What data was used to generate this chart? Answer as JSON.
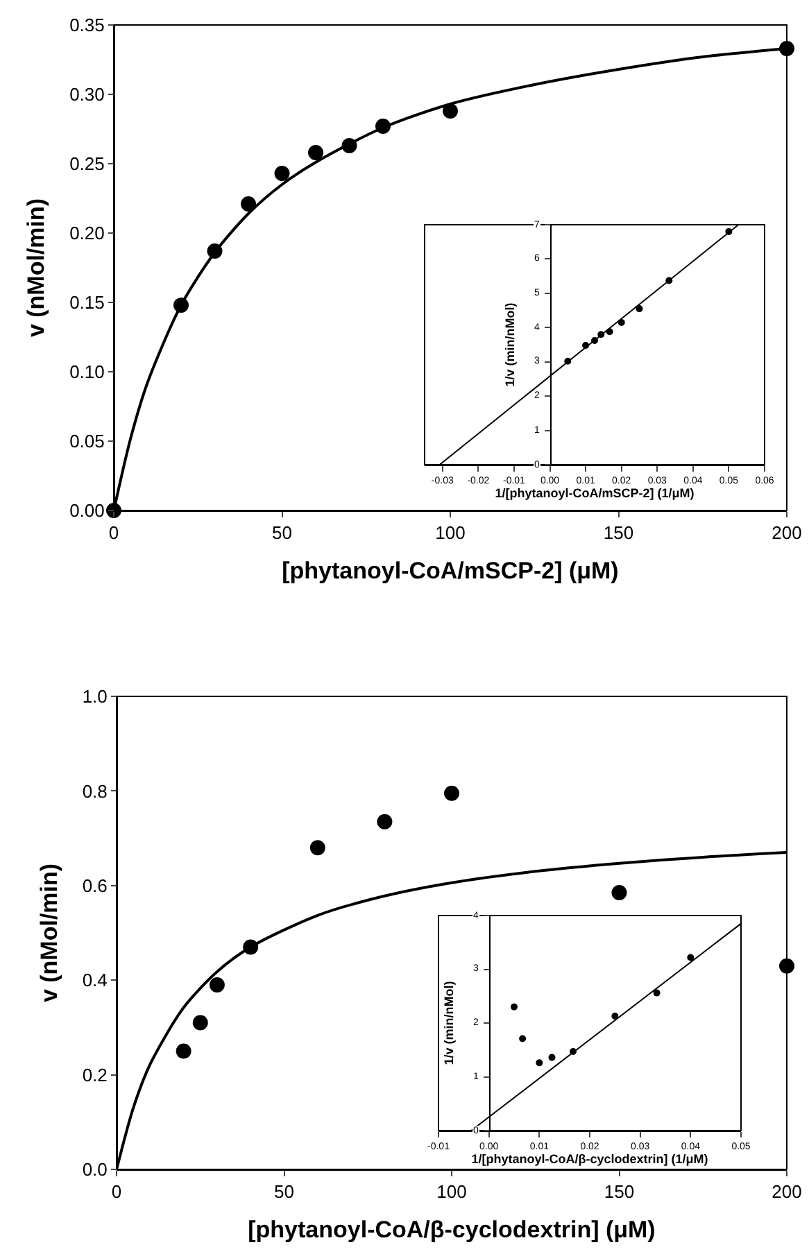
{
  "chart_data": [
    {
      "type": "scatter",
      "xlabel": "[phytanoyl-CoA/mSCP-2] (μM)",
      "ylabel": "v (nMol/min)",
      "xlim": [
        0,
        200
      ],
      "xticks": [
        0,
        50,
        100,
        150,
        200
      ],
      "ylim": [
        0,
        0.35
      ],
      "yticks": [
        {
          "value": 0,
          "label": "0.00"
        },
        {
          "value": 0.05,
          "label": "0.05"
        },
        {
          "value": 0.1,
          "label": "0.10"
        },
        {
          "value": 0.15,
          "label": "0.15"
        },
        {
          "value": 0.2,
          "label": "0.20"
        },
        {
          "value": 0.25,
          "label": "0.25"
        },
        {
          "value": 0.3,
          "label": "0.30"
        },
        {
          "value": 0.35,
          "label": "0.35"
        }
      ],
      "series": [
        {
          "type": "scatter",
          "marker": "circle",
          "color": "#000000",
          "x": [
            0,
            20,
            30,
            40,
            50,
            60,
            70,
            80,
            100,
            200
          ],
          "values": [
            0,
            0.148,
            0.187,
            0.221,
            0.243,
            0.258,
            0.263,
            0.277,
            0.288,
            0.333
          ]
        },
        {
          "type": "line",
          "marker": "none",
          "line_style": "solid",
          "color": "#000000",
          "x": [
            0,
            5,
            10,
            20,
            30,
            40,
            50,
            60,
            80,
            100,
            125,
            150,
            175,
            200
          ],
          "values": [
            0,
            0.052,
            0.092,
            0.148,
            0.186,
            0.214,
            0.235,
            0.251,
            0.276,
            0.293,
            0.307,
            0.318,
            0.327,
            0.333
          ]
        }
      ]
    },
    {
      "type": "scatter",
      "xlabel": "1/[phytanoyl-CoA/mSCP-2] (1/μM)",
      "ylabel": "1/v (min/nMol)",
      "xlim": [
        -0.035,
        0.06
      ],
      "xticks": [
        {
          "value": -0.03,
          "label": "-0.03"
        },
        {
          "value": -0.02,
          "label": "-0.02"
        },
        {
          "value": -0.01,
          "label": "-0.01"
        },
        {
          "value": 0,
          "label": "0.00"
        },
        {
          "value": 0.01,
          "label": "0.01"
        },
        {
          "value": 0.02,
          "label": "0.02"
        },
        {
          "value": 0.03,
          "label": "0.03"
        },
        {
          "value": 0.04,
          "label": "0.04"
        },
        {
          "value": 0.05,
          "label": "0.05"
        },
        {
          "value": 0.06,
          "label": "0.06"
        }
      ],
      "ylim": [
        0,
        7
      ],
      "yticks": [
        0,
        1,
        2,
        3,
        4,
        5,
        6,
        7
      ],
      "series": [
        {
          "type": "scatter",
          "marker": "circle",
          "color": "#000000",
          "x": [
            0.005,
            0.01,
            0.0125,
            0.0143,
            0.0167,
            0.02,
            0.025,
            0.0333,
            0.05
          ],
          "values": [
            3.02,
            3.48,
            3.62,
            3.8,
            3.88,
            4.15,
            4.55,
            5.37,
            6.8
          ]
        },
        {
          "type": "line",
          "marker": "none",
          "line_style": "solid",
          "color": "#000000",
          "x": [
            -0.0308,
            0.0527
          ],
          "values": [
            0,
            7
          ]
        }
      ]
    },
    {
      "type": "scatter",
      "xlabel": "[phytanoyl-CoA/β-cyclodextrin] (μM)",
      "ylabel": "v (nMol/min)",
      "xlim": [
        0,
        200
      ],
      "xticks": [
        0,
        50,
        100,
        150,
        200
      ],
      "ylim": [
        0,
        1.0
      ],
      "yticks": [
        {
          "value": 0,
          "label": "0.0"
        },
        {
          "value": 0.2,
          "label": "0.2"
        },
        {
          "value": 0.4,
          "label": "0.4"
        },
        {
          "value": 0.6,
          "label": "0.6"
        },
        {
          "value": 0.8,
          "label": "0.8"
        },
        {
          "value": 1.0,
          "label": "1.0"
        }
      ],
      "series": [
        {
          "type": "scatter",
          "marker": "circle",
          "color": "#000000",
          "x": [
            20,
            25,
            30,
            40,
            60,
            80,
            100,
            150,
            200
          ],
          "values": [
            0.25,
            0.31,
            0.39,
            0.47,
            0.68,
            0.735,
            0.795,
            0.585,
            0.43
          ]
        },
        {
          "type": "line",
          "marker": "none",
          "line_style": "solid",
          "color": "#000000",
          "x": [
            0,
            5,
            10,
            20,
            30,
            40,
            60,
            80,
            100,
            125,
            150,
            175,
            200
          ],
          "values": [
            0,
            0.13,
            0.222,
            0.342,
            0.418,
            0.47,
            0.537,
            0.578,
            0.606,
            0.63,
            0.647,
            0.66,
            0.67
          ]
        }
      ]
    },
    {
      "type": "scatter",
      "xlabel": "1/[phytanoyl-CoA/β-cyclodextrin] (1/μM)",
      "ylabel": "1/v (min/nMol)",
      "xlim": [
        -0.01,
        0.05
      ],
      "xticks": [
        {
          "value": -0.01,
          "label": "-0.01"
        },
        {
          "value": 0,
          "label": "0.00"
        },
        {
          "value": 0.01,
          "label": "0.01"
        },
        {
          "value": 0.02,
          "label": "0.02"
        },
        {
          "value": 0.03,
          "label": "0.03"
        },
        {
          "value": 0.04,
          "label": "0.04"
        },
        {
          "value": 0.05,
          "label": "0.05"
        }
      ],
      "ylim": [
        0,
        4
      ],
      "yticks": [
        0,
        1,
        2,
        3,
        4
      ],
      "series": [
        {
          "type": "scatter",
          "marker": "circle",
          "color": "#000000",
          "x": [
            0.005,
            0.00667,
            0.01,
            0.0125,
            0.0167,
            0.025,
            0.0333,
            0.04
          ],
          "values": [
            2.3,
            1.71,
            1.26,
            1.36,
            1.47,
            2.13,
            2.56,
            3.22
          ]
        },
        {
          "type": "line",
          "marker": "none",
          "line_style": "solid",
          "color": "#000000",
          "x": [
            -0.0035,
            0.05
          ],
          "values": [
            0,
            3.85
          ]
        }
      ]
    }
  ]
}
